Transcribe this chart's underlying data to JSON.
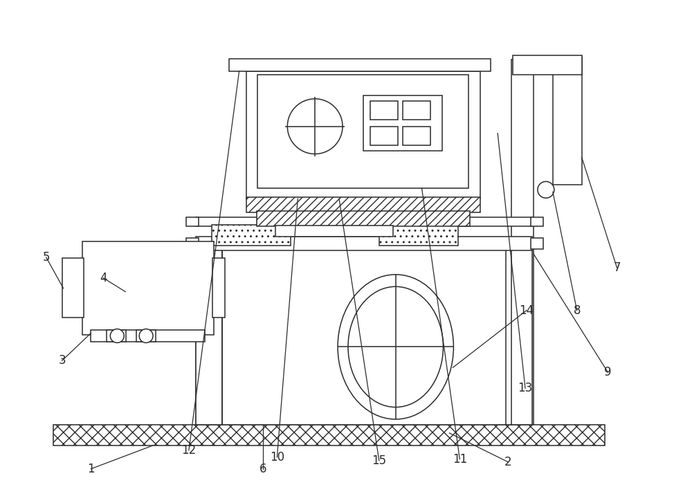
{
  "bg_color": "white",
  "line_color": "#2a2a2a",
  "figure_size": [
    10.0,
    7.17
  ],
  "dpi": 100,
  "label_fontsize": 12,
  "lw": 1.1
}
